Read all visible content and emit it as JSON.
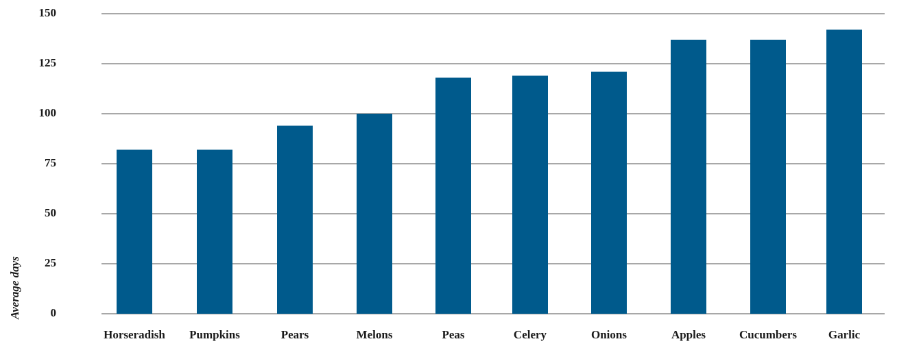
{
  "chart_data": {
    "type": "bar",
    "title": "",
    "xlabel": "",
    "ylabel": "Average days",
    "categories": [
      "Horseradish",
      "Pumpkins",
      "Pears",
      "Melons",
      "Peas",
      "Celery",
      "Onions",
      "Apples",
      "Cucumbers",
      "Garlic"
    ],
    "values": [
      82,
      82,
      94,
      100,
      118,
      119,
      121,
      137,
      137,
      142
    ],
    "ylim": [
      0,
      150
    ],
    "yticks": [
      0,
      25,
      50,
      75,
      100,
      125,
      150
    ],
    "grid": true,
    "legend": "none",
    "colors": {
      "bar": "#005a8c",
      "grid": "#8c8c8c",
      "text": "#1a1a1a"
    }
  }
}
